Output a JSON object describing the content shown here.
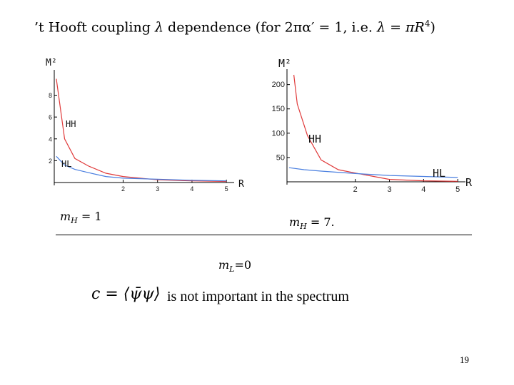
{
  "slide": {
    "title_prefix": "’t Hooft coupling ",
    "title_lambda": "λ",
    "title_mid": " dependence (for 2πα′ = 1, i.e. ",
    "title_eq": "λ = πR",
    "title_exp": "4",
    "title_suffix": ")",
    "caption_left_var": "m",
    "caption_left_sub": "H",
    "caption_left_val": " = 1",
    "caption_right_var": "m",
    "caption_right_sub": "H",
    "caption_right_val": " = 7.",
    "ml_var": "m",
    "ml_sub": "L",
    "ml_val": "=0",
    "formula": "c = ⟨ψ̄ψ⟩",
    "note": "is not important in the spectrum",
    "page_number": "19"
  },
  "chart_data": [
    {
      "type": "line",
      "ylabel": "M²",
      "xlabel": "R",
      "xlim": [
        0,
        5.1
      ],
      "ylim": [
        0,
        9.8
      ],
      "x_ticks": [
        2,
        3,
        4,
        5
      ],
      "y_ticks": [
        2,
        4,
        6,
        8
      ],
      "series": [
        {
          "name": "HH",
          "color": "#e03a3a",
          "x": [
            0.06,
            0.3,
            0.6,
            1.0,
            1.5,
            2.0,
            3.0,
            4.0,
            5.0
          ],
          "y": [
            9.5,
            4.0,
            2.2,
            1.5,
            0.85,
            0.55,
            0.25,
            0.15,
            0.1
          ]
        },
        {
          "name": "HL",
          "color": "#4a7fe0",
          "x": [
            0.06,
            0.3,
            0.6,
            1.0,
            1.5,
            2.0,
            3.0,
            4.0,
            5.0
          ],
          "y": [
            2.4,
            1.6,
            1.2,
            0.9,
            0.55,
            0.4,
            0.3,
            0.2,
            0.15
          ]
        }
      ],
      "grid": false
    },
    {
      "type": "line",
      "ylabel": "M²",
      "xlabel": "R",
      "xlim": [
        0,
        5.1
      ],
      "ylim": [
        0,
        220
      ],
      "x_ticks": [
        2,
        3,
        4,
        5
      ],
      "y_ticks": [
        50,
        100,
        150,
        200
      ],
      "series": [
        {
          "name": "HH",
          "color": "#e03a3a",
          "x": [
            0.2,
            0.3,
            0.6,
            1.0,
            1.5,
            2.0,
            3.0,
            4.0,
            5.0
          ],
          "y": [
            220,
            160,
            95,
            45,
            25,
            18,
            5,
            2,
            1
          ]
        },
        {
          "name": "HL",
          "color": "#4a7fe0",
          "x": [
            0.06,
            0.5,
            1.0,
            2.0,
            3.0,
            4.0,
            5.0
          ],
          "y": [
            29,
            25,
            22,
            17,
            13,
            11,
            9
          ]
        }
      ],
      "grid": false
    }
  ]
}
